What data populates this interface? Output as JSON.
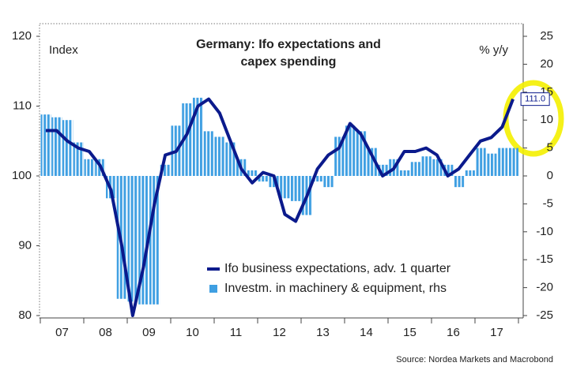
{
  "chart_data": {
    "type": "combo",
    "title": "Germany: Ifo expectations and",
    "subtitle": "capex spending",
    "y_label": "Index",
    "y2_label": "% y/y",
    "source": "Source: Nordea Markets and Macrobond",
    "categories": [
      null,
      "07",
      null,
      null,
      null,
      "08",
      null,
      null,
      null,
      "09",
      null,
      null,
      null,
      "10",
      null,
      null,
      null,
      "11",
      null,
      null,
      null,
      "12",
      null,
      null,
      null,
      "13",
      null,
      null,
      null,
      "14",
      null,
      null,
      null,
      "15",
      null,
      null,
      null,
      "16",
      null,
      null,
      null,
      "17",
      null,
      null
    ],
    "ylim": [
      80,
      120
    ],
    "yticks": [
      80,
      90,
      100,
      110,
      120
    ],
    "y2lim": [
      -25,
      25
    ],
    "y2ticks": [
      -25,
      -20,
      -15,
      -10,
      -5,
      0,
      5,
      10,
      15,
      20,
      25
    ],
    "series": [
      {
        "name": "Investm. in machinery & equipment, rhs",
        "type": "bar",
        "axis": "y2",
        "color": "#3f9fe2",
        "values": [
          11,
          10.5,
          10,
          6,
          3,
          3,
          -4,
          -22,
          -22.5,
          -23,
          -23,
          2,
          9,
          13,
          14,
          8,
          7,
          6,
          3,
          1,
          -1,
          -2,
          -4,
          -4.5,
          -7,
          -1,
          -2,
          7,
          9,
          8,
          5,
          2,
          3,
          1,
          2.5,
          3.5,
          3,
          2,
          -2,
          1,
          5,
          4,
          5,
          5
        ]
      },
      {
        "name": "Ifo business expectations, adv. 1 quarter",
        "type": "line",
        "color": "#0b1a8c",
        "values": [
          106.5,
          106.5,
          105,
          104,
          103.5,
          101.5,
          98,
          90,
          80,
          87,
          96,
          103,
          103.5,
          106,
          110,
          111,
          109,
          105,
          101,
          99,
          100.5,
          100,
          94.5,
          93.5,
          97,
          101,
          103,
          104,
          107.5,
          106,
          103,
          100,
          101,
          103.5,
          103.5,
          104,
          103,
          100,
          101,
          103,
          105,
          105.5,
          107,
          111.0
        ],
        "value_labels": [
          null,
          null,
          null,
          null,
          null,
          null,
          null,
          null,
          null,
          null,
          null,
          null,
          null,
          null,
          null,
          null,
          null,
          null,
          null,
          null,
          null,
          null,
          null,
          null,
          null,
          null,
          null,
          null,
          null,
          null,
          null,
          null,
          null,
          null,
          null,
          null,
          null,
          null,
          null,
          null,
          null,
          null,
          null,
          "111.0"
        ]
      }
    ],
    "legend": "bottom-center"
  }
}
